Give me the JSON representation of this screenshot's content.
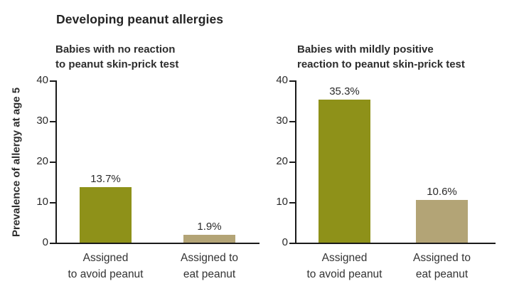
{
  "title": "Developing peanut allergies",
  "ylabel": "Prevalence of allergy at age 5",
  "colors": {
    "avoid_peanut_bar": "#8e9119",
    "eat_peanut_bar": "#b3a476",
    "axis": "#1a1a1a",
    "text": "#2d2d2d"
  },
  "chart_data": [
    {
      "type": "bar",
      "title_lines": [
        "Babies with no reaction",
        "to peanut skin-prick test"
      ],
      "ylabel": "Prevalence of allergy at age 5",
      "categories": [
        [
          "Assigned",
          "to avoid peanut"
        ],
        [
          "Assigned to",
          "eat peanut"
        ]
      ],
      "values": [
        13.7,
        1.9
      ],
      "value_labels": [
        "13.7%",
        "1.9%"
      ],
      "bar_colors": [
        "#8e9119",
        "#b3a476"
      ],
      "ylim": [
        0,
        40
      ],
      "y_ticks": [
        0,
        10,
        20,
        30,
        40
      ],
      "grid": false,
      "legend": "none"
    },
    {
      "type": "bar",
      "title_lines": [
        "Babies with mildly positive",
        "reaction to peanut skin-prick test"
      ],
      "ylabel": "Prevalence of allergy at age 5",
      "categories": [
        [
          "Assigned",
          "to avoid peanut"
        ],
        [
          "Assigned to",
          "eat peanut"
        ]
      ],
      "values": [
        35.3,
        10.6
      ],
      "value_labels": [
        "35.3%",
        "10.6%"
      ],
      "bar_colors": [
        "#8e9119",
        "#b3a476"
      ],
      "ylim": [
        0,
        40
      ],
      "y_ticks": [
        0,
        10,
        20,
        30,
        40
      ],
      "grid": false,
      "legend": "none"
    }
  ]
}
